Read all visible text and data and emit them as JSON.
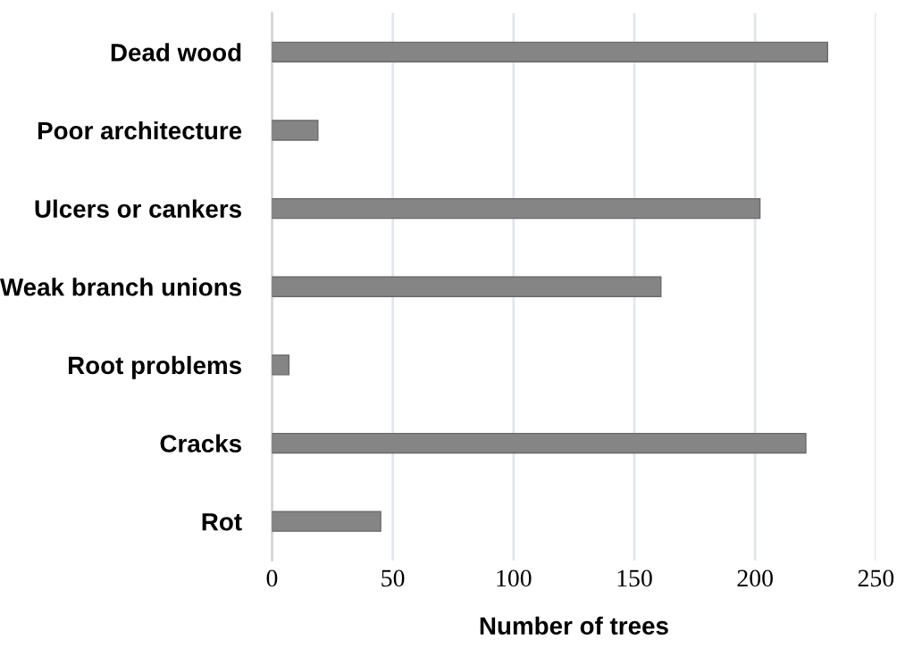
{
  "chart_data": {
    "type": "bar",
    "orientation": "horizontal",
    "xlabel": "Number of trees",
    "categories": [
      "Dead wood",
      "Poor architecture",
      "Ulcers or cankers",
      "Weak branch unions",
      "Root problems",
      "Cracks",
      "Rot"
    ],
    "values": [
      230,
      19,
      202,
      161,
      7,
      221,
      45
    ],
    "color": "#858585",
    "xlim": [
      0,
      250
    ],
    "xticks": [
      0,
      50,
      100,
      150,
      200,
      250
    ],
    "grid": "x"
  }
}
